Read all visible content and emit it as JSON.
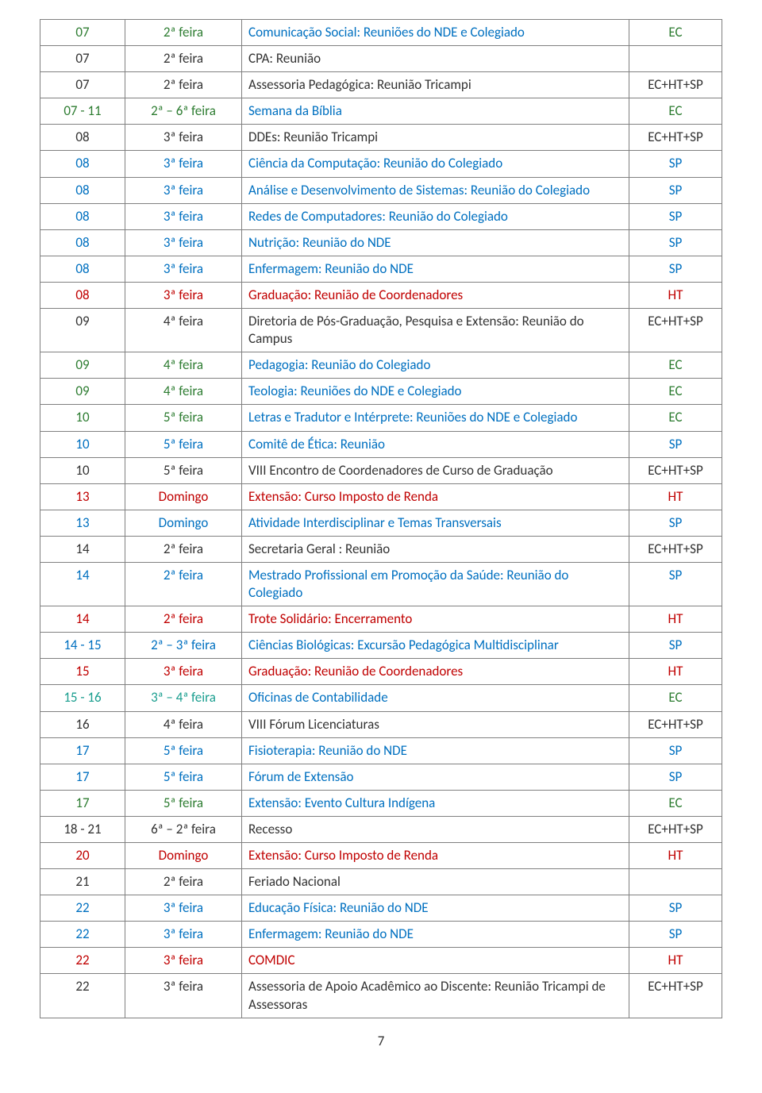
{
  "palette": {
    "black": "#333333",
    "green": "#2e7d32",
    "blue": "#0070c0",
    "red": "#c00000",
    "teal": "#1a9e8f"
  },
  "pageNumber": "7",
  "rows": [
    {
      "date": "07",
      "day": "2ª feira",
      "desc": "Comunicação Social: Reuniões do NDE e Colegiado",
      "loc": "EC",
      "c": {
        "date": "green",
        "day": "green",
        "desc": "blue",
        "loc": "green"
      }
    },
    {
      "date": "07",
      "day": "2ª feira",
      "desc": "CPA: Reunião",
      "loc": "",
      "c": {
        "date": "black",
        "day": "black",
        "desc": "black",
        "loc": "black"
      }
    },
    {
      "date": "07",
      "day": "2ª feira",
      "desc": "Assessoria Pedagógica: Reunião Tricampi",
      "loc": "EC+HT+SP",
      "c": {
        "date": "black",
        "day": "black",
        "desc": "black",
        "loc": "black"
      }
    },
    {
      "date": "07 - 11",
      "day": "2ª – 6ª feira",
      "desc": "Semana da Bíblia",
      "loc": "EC",
      "c": {
        "date": "green",
        "day": "green",
        "desc": "blue",
        "loc": "green"
      }
    },
    {
      "date": "08",
      "day": "3ª feira",
      "desc": "DDEs: Reunião Tricampi",
      "loc": "EC+HT+SP",
      "c": {
        "date": "black",
        "day": "black",
        "desc": "black",
        "loc": "black"
      }
    },
    {
      "date": "08",
      "day": "3ª feira",
      "desc": "Ciência da Computação: Reunião do Colegiado",
      "loc": "SP",
      "c": {
        "date": "blue",
        "day": "blue",
        "desc": "blue",
        "loc": "blue"
      }
    },
    {
      "date": "08",
      "day": "3ª feira",
      "desc": "Análise e Desenvolvimento de Sistemas: Reunião do Colegiado",
      "loc": "SP",
      "c": {
        "date": "blue",
        "day": "blue",
        "desc": "blue",
        "loc": "blue"
      }
    },
    {
      "date": "08",
      "day": "3ª feira",
      "desc": "Redes de Computadores: Reunião do Colegiado",
      "loc": "SP",
      "c": {
        "date": "blue",
        "day": "blue",
        "desc": "blue",
        "loc": "blue"
      }
    },
    {
      "date": "08",
      "day": "3ª feira",
      "desc": "Nutrição: Reunião do NDE",
      "loc": "SP",
      "c": {
        "date": "blue",
        "day": "blue",
        "desc": "blue",
        "loc": "blue"
      }
    },
    {
      "date": "08",
      "day": "3ª feira",
      "desc": "Enfermagem: Reunião do NDE",
      "loc": "SP",
      "c": {
        "date": "blue",
        "day": "blue",
        "desc": "blue",
        "loc": "blue"
      }
    },
    {
      "date": "08",
      "day": "3ª feira",
      "desc": "Graduação: Reunião de Coordenadores",
      "loc": "HT",
      "c": {
        "date": "red",
        "day": "red",
        "desc": "red",
        "loc": "red"
      }
    },
    {
      "date": "09",
      "day": "4ª feira",
      "desc": "Diretoria de Pós-Graduação, Pesquisa e Extensão: Reunião do Campus",
      "loc": "EC+HT+SP",
      "c": {
        "date": "black",
        "day": "black",
        "desc": "black",
        "loc": "black"
      }
    },
    {
      "date": "09",
      "day": "4ª feira",
      "desc": "Pedagogia: Reunião do Colegiado",
      "loc": "EC",
      "c": {
        "date": "green",
        "day": "green",
        "desc": "blue",
        "loc": "green"
      }
    },
    {
      "date": "09",
      "day": "4ª feira",
      "desc": "Teologia: Reuniões do NDE e Colegiado",
      "loc": "EC",
      "c": {
        "date": "green",
        "day": "green",
        "desc": "blue",
        "loc": "green"
      }
    },
    {
      "date": "10",
      "day": "5ª feira",
      "desc": "Letras e Tradutor e Intérprete: Reuniões do NDE e Colegiado",
      "loc": "EC",
      "c": {
        "date": "green",
        "day": "green",
        "desc": "blue",
        "loc": "green"
      }
    },
    {
      "date": "10",
      "day": "5ª feira",
      "desc": "Comitê de Ética: Reunião",
      "loc": "SP",
      "c": {
        "date": "blue",
        "day": "blue",
        "desc": "blue",
        "loc": "blue"
      }
    },
    {
      "date": "10",
      "day": "5ª feira",
      "desc": "VIII Encontro de Coordenadores de Curso de Graduação",
      "loc": "EC+HT+SP",
      "c": {
        "date": "black",
        "day": "black",
        "desc": "black",
        "loc": "black"
      }
    },
    {
      "date": "13",
      "day": "Domingo",
      "desc": "Extensão:  Curso Imposto de Renda",
      "loc": "HT",
      "c": {
        "date": "red",
        "day": "red",
        "desc": "red",
        "loc": "red"
      }
    },
    {
      "date": "13",
      "day": "Domingo",
      "desc": "Atividade Interdisciplinar e Temas Transversais",
      "loc": "SP",
      "c": {
        "date": "blue",
        "day": "blue",
        "desc": "blue",
        "loc": "blue"
      }
    },
    {
      "date": "14",
      "day": "2ª feira",
      "desc": "Secretaria Geral : Reunião",
      "loc": "EC+HT+SP",
      "c": {
        "date": "black",
        "day": "black",
        "desc": "black",
        "loc": "black"
      }
    },
    {
      "date": "14",
      "day": "2ª feira",
      "desc": "Mestrado Profissional em Promoção da Saúde: Reunião do Colegiado",
      "loc": "SP",
      "c": {
        "date": "blue",
        "day": "blue",
        "desc": "blue",
        "loc": "blue"
      }
    },
    {
      "date": "14",
      "day": "2ª feira",
      "desc": "Trote Solidário: Encerramento",
      "loc": "HT",
      "c": {
        "date": "red",
        "day": "red",
        "desc": "red",
        "loc": "red"
      }
    },
    {
      "date": "14 - 15",
      "day": "2ª – 3ª feira",
      "desc": "Ciências Biológicas: Excursão Pedagógica Multidisciplinar",
      "loc": "SP",
      "c": {
        "date": "blue",
        "day": "blue",
        "desc": "blue",
        "loc": "blue"
      }
    },
    {
      "date": "15",
      "day": "3ª feira",
      "desc": "Graduação: Reunião de Coordenadores",
      "loc": "HT",
      "c": {
        "date": "red",
        "day": "red",
        "desc": "red",
        "loc": "red"
      }
    },
    {
      "date": "15 - 16",
      "day": "3ª – 4ª feira",
      "desc": "Oficinas de Contabilidade",
      "loc": "EC",
      "c": {
        "date": "teal",
        "day": "teal",
        "desc": "blue",
        "loc": "green"
      }
    },
    {
      "date": "16",
      "day": "4ª feira",
      "desc": "VIII Fórum Licenciaturas",
      "loc": "EC+HT+SP",
      "c": {
        "date": "black",
        "day": "black",
        "desc": "black",
        "loc": "black"
      }
    },
    {
      "date": "17",
      "day": "5ª feira",
      "desc": "Fisioterapia: Reunião do NDE",
      "loc": "SP",
      "c": {
        "date": "blue",
        "day": "blue",
        "desc": "blue",
        "loc": "blue"
      }
    },
    {
      "date": "17",
      "day": "5ª feira",
      "desc": "Fórum de Extensão",
      "loc": "SP",
      "c": {
        "date": "blue",
        "day": "blue",
        "desc": "blue",
        "loc": "blue"
      }
    },
    {
      "date": "17",
      "day": "5ª feira",
      "desc": "Extensão: Evento Cultura Indígena",
      "loc": "EC",
      "c": {
        "date": "green",
        "day": "green",
        "desc": "blue",
        "loc": "green"
      }
    },
    {
      "date": "18 - 21",
      "day": "6ª – 2ª feira",
      "desc": "Recesso",
      "loc": "EC+HT+SP",
      "c": {
        "date": "black",
        "day": "black",
        "desc": "black",
        "loc": "black"
      }
    },
    {
      "date": "20",
      "day": "Domingo",
      "desc": "Extensão:  Curso Imposto de Renda",
      "loc": "HT",
      "c": {
        "date": "red",
        "day": "red",
        "desc": "red",
        "loc": "red"
      }
    },
    {
      "date": "21",
      "day": "2ª feira",
      "desc": "Feriado Nacional",
      "loc": "",
      "c": {
        "date": "black",
        "day": "black",
        "desc": "black",
        "loc": "black"
      }
    },
    {
      "date": "22",
      "day": "3ª feira",
      "desc": "Educação Física: Reunião do NDE",
      "loc": "SP",
      "c": {
        "date": "blue",
        "day": "blue",
        "desc": "blue",
        "loc": "blue"
      }
    },
    {
      "date": "22",
      "day": "3ª feira",
      "desc": "Enfermagem: Reunião do NDE",
      "loc": "SP",
      "c": {
        "date": "blue",
        "day": "blue",
        "desc": "blue",
        "loc": "blue"
      }
    },
    {
      "date": "22",
      "day": "3ª feira",
      "desc": "COMDIC",
      "loc": "HT",
      "c": {
        "date": "red",
        "day": "red",
        "desc": "red",
        "loc": "red"
      }
    },
    {
      "date": "22",
      "day": "3ª feira",
      "desc": "Assessoria de Apoio Acadêmico ao Discente: Reunião Tricampi de Assessoras",
      "loc": "EC+HT+SP",
      "c": {
        "date": "black",
        "day": "black",
        "desc": "black",
        "loc": "black"
      }
    }
  ]
}
